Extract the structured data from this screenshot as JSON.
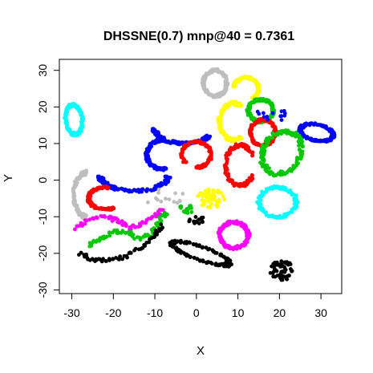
{
  "chart_data": {
    "type": "scatter",
    "title": "DHSSNE(0.7) mnp@40 = 0.7361",
    "xlabel": "X",
    "ylabel": "Y",
    "xlim": [
      -33,
      35
    ],
    "ylim": [
      -31,
      33
    ],
    "xticks": [
      -30,
      -20,
      -10,
      0,
      10,
      20,
      30
    ],
    "yticks": [
      -30,
      -20,
      -10,
      0,
      10,
      20,
      30
    ],
    "grid": false,
    "legend": "none",
    "clusters": [
      {
        "color": "#00ffff",
        "shape": "loop",
        "center": [
          -29.5,
          16.5
        ],
        "rx": 2.0,
        "ry": 4.0,
        "rot": 5
      },
      {
        "color": "#bebebe",
        "shape": "loop",
        "center": [
          4.5,
          26.5
        ],
        "rx": 2.8,
        "ry": 3.5,
        "rot": 0
      },
      {
        "color": "#ffff00",
        "shape": "arc",
        "center": [
          12,
          25
        ],
        "rx": 3.0,
        "ry": 3.0,
        "rot": 0,
        "start": -60,
        "end": 170
      },
      {
        "color": "#ffff00",
        "shape": "arc",
        "center": [
          9,
          16
        ],
        "rx": 3.5,
        "ry": 5.0,
        "rot": 0,
        "start": 60,
        "end": 300
      },
      {
        "color": "#00c800",
        "shape": "loop",
        "center": [
          15.5,
          19
        ],
        "rx": 3.0,
        "ry": 3.0,
        "rot": 0
      },
      {
        "color": "#0000ff",
        "shape": "loop",
        "center": [
          29,
          13
        ],
        "rx": 4.0,
        "ry": 2.2,
        "rot": -15
      },
      {
        "color": "#0000ff",
        "shape": "arc",
        "center": [
          -3,
          14
        ],
        "rx": 7.0,
        "ry": 4.0,
        "rot": 0,
        "start": 180,
        "end": 330
      },
      {
        "color": "#0000ff",
        "shape": "arc",
        "center": [
          -8,
          7
        ],
        "rx": 4.0,
        "ry": 4.0,
        "rot": 0,
        "start": 90,
        "end": 280
      },
      {
        "color": "#0000ff",
        "shape": "arc",
        "center": [
          -15,
          1
        ],
        "rx": 8.0,
        "ry": 4.0,
        "rot": 0,
        "start": 180,
        "end": 360
      },
      {
        "color": "#ff0000",
        "shape": "arc",
        "center": [
          0,
          7
        ],
        "rx": 3.5,
        "ry": 3.5,
        "rot": 0,
        "start": -90,
        "end": 220
      },
      {
        "color": "#ff0000",
        "shape": "arc",
        "center": [
          16,
          13
        ],
        "rx": 3.0,
        "ry": 3.5,
        "rot": 0,
        "start": 0,
        "end": 360
      },
      {
        "color": "#ff0000",
        "shape": "arc",
        "center": [
          10.5,
          4
        ],
        "rx": 3.5,
        "ry": 5.5,
        "rot": 0,
        "start": 30,
        "end": 330
      },
      {
        "color": "#ff0000",
        "shape": "arc",
        "center": [
          -22,
          -5
        ],
        "rx": 4.0,
        "ry": 3.0,
        "rot": 0,
        "start": 80,
        "end": 300
      },
      {
        "color": "#00c800",
        "shape": "loop",
        "center": [
          20.5,
          7.5
        ],
        "rx": 4.5,
        "ry": 6.0,
        "rot": -20
      },
      {
        "color": "#bebebe",
        "shape": "arc",
        "center": [
          -26.5,
          -4
        ],
        "rx": 3.0,
        "ry": 6.0,
        "rot": 0,
        "start": 90,
        "end": 270
      },
      {
        "color": "#ffff00",
        "shape": "blob",
        "center": [
          3.5,
          -5
        ],
        "rx": 3.5,
        "ry": 2.5,
        "rot": 0
      },
      {
        "color": "#00ffff",
        "shape": "arc",
        "center": [
          19.5,
          -6
        ],
        "rx": 4.5,
        "ry": 4.0,
        "rot": 0,
        "start": 0,
        "end": 360
      },
      {
        "color": "#ff00ff",
        "shape": "loop",
        "center": [
          9,
          -15
        ],
        "rx": 3.5,
        "ry": 3.5,
        "rot": 0
      },
      {
        "color": "#000000",
        "shape": "loop",
        "center": [
          1,
          -20
        ],
        "rx": 7.5,
        "ry": 1.8,
        "rot": -22
      },
      {
        "color": "#000000",
        "shape": "blob",
        "center": [
          20.5,
          -24.5
        ],
        "rx": 2.8,
        "ry": 3.0,
        "rot": 0
      },
      {
        "color": "#ff00ff",
        "shape": "curve",
        "points": [
          [
            -29,
            -13
          ],
          [
            -26,
            -11
          ],
          [
            -22,
            -10
          ],
          [
            -19,
            -11
          ],
          [
            -16,
            -13
          ],
          [
            -13,
            -12
          ],
          [
            -10,
            -10
          ],
          [
            -8,
            -8
          ]
        ]
      },
      {
        "color": "#00c800",
        "shape": "curve",
        "points": [
          [
            -26,
            -18
          ],
          [
            -23,
            -16
          ],
          [
            -20,
            -14
          ],
          [
            -17,
            -14
          ],
          [
            -14,
            -16
          ],
          [
            -11,
            -15
          ],
          [
            -9,
            -11
          ],
          [
            -7,
            -9
          ]
        ]
      },
      {
        "color": "#000000",
        "shape": "curve",
        "points": [
          [
            -28,
            -20
          ],
          [
            -25,
            -22
          ],
          [
            -21,
            -22
          ],
          [
            -17,
            -21
          ],
          [
            -13,
            -18
          ],
          [
            -10,
            -15
          ],
          [
            -8,
            -12
          ]
        ]
      },
      {
        "color": "#bebebe",
        "shape": "scatter",
        "center": [
          -8,
          -4
        ],
        "rx": 5.0,
        "ry": 2.5
      },
      {
        "color": "#00c800",
        "shape": "scatter",
        "center": [
          -2.5,
          -8
        ],
        "rx": 1.5,
        "ry": 1.2
      },
      {
        "color": "#000000",
        "shape": "scatter",
        "center": [
          0,
          -11
        ],
        "rx": 2.0,
        "ry": 1.0
      },
      {
        "color": "#0000ff",
        "shape": "scatter",
        "center": [
          18,
          17.5
        ],
        "rx": 3.5,
        "ry": 1.5
      }
    ]
  }
}
